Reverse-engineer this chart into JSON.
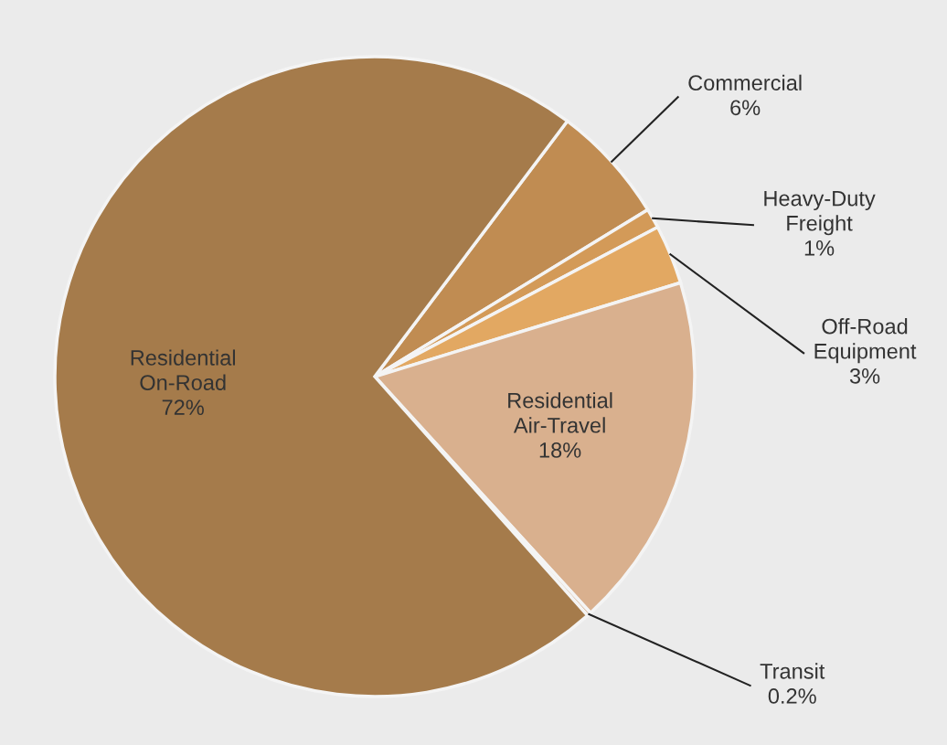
{
  "chart_data": {
    "type": "pie",
    "categories": [
      "Commercial",
      "Heavy-Duty\nFreight",
      "Off-Road\nEquipment",
      "Residential\nAir-Travel",
      "Transit",
      "Residential\nOn-Road"
    ],
    "values": [
      6,
      1,
      3,
      18,
      0.2,
      72
    ],
    "colors": [
      "#c08c52",
      "#d39a58",
      "#e2a862",
      "#d9b08e",
      "#d2a882",
      "#a57b4b"
    ],
    "value_labels": [
      "6%",
      "1%",
      "3%",
      "18%",
      "0.2%",
      "72%"
    ],
    "legend": false
  }
}
